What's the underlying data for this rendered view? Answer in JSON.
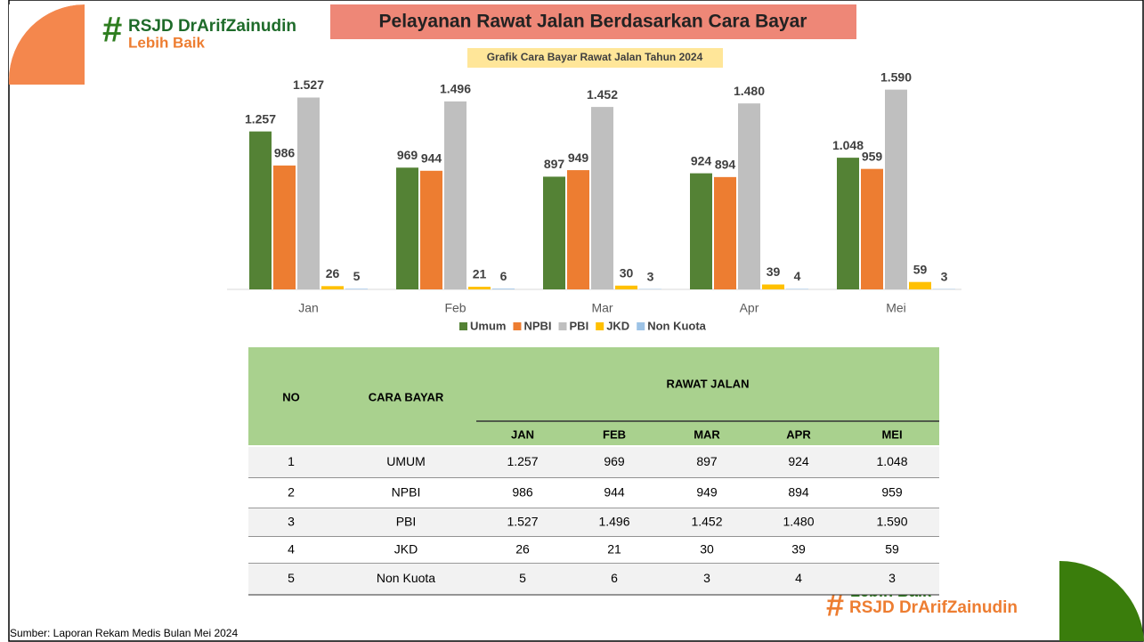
{
  "header": {
    "title": "Pelayanan Rawat Jalan Berdasarkan Cara Bayar"
  },
  "logo": {
    "symbol": "#",
    "name": "RSJD DrArifZainudin",
    "tagline": "Lebih Baik"
  },
  "logo_bottom": {
    "symbol": "#",
    "name": "RSJD DrArifZainudin",
    "tagline": "Lebih Baik"
  },
  "chart_data": {
    "type": "bar",
    "title": "Grafik Cara Bayar Rawat Jalan Tahun 2024",
    "categories": [
      "Jan",
      "Feb",
      "Mar",
      "Apr",
      "Mei"
    ],
    "ylim": [
      0,
      1800
    ],
    "legend": "bottom",
    "series": [
      {
        "name": "Umum",
        "color": "#548235",
        "values": [
          1257,
          969,
          897,
          924,
          1048
        ],
        "value_labels": [
          "1.257",
          "969",
          "897",
          "924",
          "1.048"
        ]
      },
      {
        "name": "NPBI",
        "color": "#ed7d31",
        "values": [
          986,
          944,
          949,
          894,
          959
        ],
        "value_labels": [
          "986",
          "944",
          "949",
          "894",
          "959"
        ]
      },
      {
        "name": "PBI",
        "color": "#bfbfbf",
        "values": [
          1527,
          1496,
          1452,
          1480,
          1590
        ],
        "value_labels": [
          "1.527",
          "1.496",
          "1.452",
          "1.480",
          "1.590"
        ]
      },
      {
        "name": "JKD",
        "color": "#ffc000",
        "values": [
          26,
          21,
          30,
          39,
          59
        ],
        "value_labels": [
          "26",
          "21",
          "30",
          "39",
          "59"
        ]
      },
      {
        "name": "Non Kuota",
        "color": "#9dc3e6",
        "values": [
          5,
          6,
          3,
          4,
          3
        ],
        "value_labels": [
          "5",
          "6",
          "3",
          "4",
          "3"
        ]
      }
    ]
  },
  "table": {
    "header": {
      "no": "NO",
      "method": "CARA BAYAR",
      "group": "RAWAT JALAN",
      "months": [
        "JAN",
        "FEB",
        "MAR",
        "APR",
        "MEI"
      ]
    },
    "rows": [
      [
        "1",
        "UMUM",
        "1.257",
        "969",
        "897",
        "924",
        "1.048"
      ],
      [
        "2",
        "NPBI",
        "986",
        "944",
        "949",
        "894",
        "959"
      ],
      [
        "3",
        "PBI",
        "1.527",
        "1.496",
        "1.452",
        "1.480",
        "1.590"
      ],
      [
        "4",
        "JKD",
        "26",
        "21",
        "30",
        "39",
        "59"
      ],
      [
        "5",
        "Non Kuota",
        "5",
        "6",
        "3",
        "4",
        "3"
      ]
    ]
  },
  "footer": {
    "source": "Sumber: Laporan Rekam Medis Bulan Mei 2024"
  }
}
